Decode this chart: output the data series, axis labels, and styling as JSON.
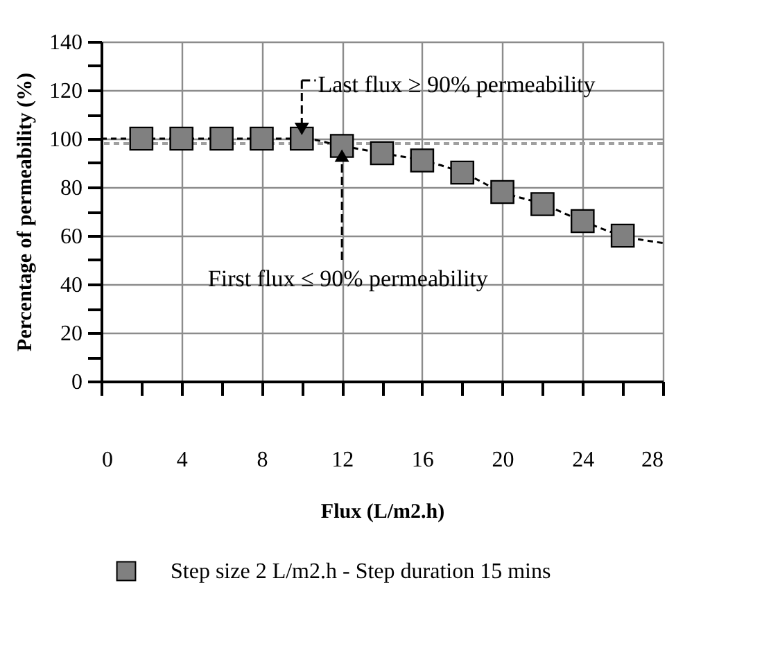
{
  "chart_data": {
    "type": "scatter",
    "xlabel": "Flux (L/m2.h)",
    "ylabel": "Percentage of permeability (%)",
    "xlim": [
      0,
      28
    ],
    "ylim": [
      0,
      140
    ],
    "xticks": [
      0,
      {
        "value": 2,
        "label": null
      },
      4,
      {
        "value": 6,
        "label": null
      },
      8,
      {
        "value": 10,
        "label": null
      },
      12,
      {
        "value": 14,
        "label": null
      },
      16,
      {
        "value": 18,
        "label": null
      },
      20,
      {
        "value": 22,
        "label": null
      },
      24,
      {
        "value": 26,
        "label": null
      },
      28
    ],
    "yticks": [
      0,
      {
        "value": 10,
        "label": null
      },
      20,
      {
        "value": 30,
        "label": null
      },
      40,
      {
        "value": 50,
        "label": null
      },
      60,
      {
        "value": 70,
        "label": null
      },
      80,
      {
        "value": 90,
        "label": null
      },
      100,
      {
        "value": 110,
        "label": null
      },
      120,
      {
        "value": 130,
        "label": null
      },
      140
    ],
    "grid": true,
    "legend": "bottom",
    "marker": "square",
    "series": [
      {
        "name": "Step size 2 L/m2.h  - Step duration 15 mins",
        "color": "#808080",
        "x": [
          2,
          4,
          6,
          8,
          10,
          12,
          14,
          16,
          18,
          20,
          22,
          24,
          26
        ],
        "values": [
          100,
          100,
          100,
          100,
          100,
          97,
          94,
          91,
          86,
          78,
          73,
          66,
          60
        ]
      },
      {
        "type": "line",
        "marker": "none",
        "line_style": "dashed",
        "color": "#000000",
        "x": [
          0,
          10,
          12,
          14,
          16,
          18,
          20,
          22,
          24,
          26,
          28
        ],
        "values": [
          100,
          100,
          97,
          94,
          91,
          86,
          78,
          73,
          66,
          60,
          57
        ]
      }
    ],
    "ref_lines": [
      {
        "axis": "y",
        "value": 98,
        "color": "#a0a0a0",
        "line_style": "dashed"
      }
    ],
    "annotations": [
      {
        "text": "Last flux ≥ 90% permeability",
        "x": 10,
        "y": 100
      },
      {
        "text": "First flux ≤ 90% permeability",
        "x": 12,
        "y": 97
      }
    ]
  }
}
